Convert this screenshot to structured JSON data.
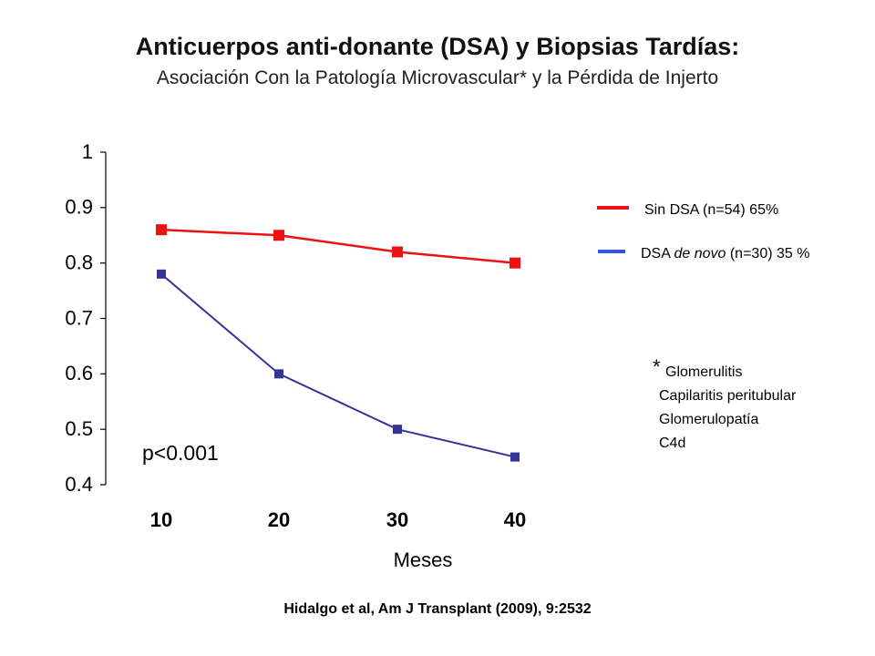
{
  "slide": {
    "title": "Anticuerpos anti-donante (DSA) y Biopsias Tardías:",
    "subtitle": "Asociación Con la Patología Microvascular* y la Pérdida de Injerto",
    "citation": "Hidalgo et al, Am J Transplant (2009), 9:2532"
  },
  "chart_data": {
    "type": "line",
    "x": [
      10,
      20,
      30,
      40
    ],
    "x_tick_labels": [
      "10",
      "20",
      "30",
      "40"
    ],
    "xlabel": "Meses",
    "ylabel": "",
    "ylim": [
      0.4,
      1.0
    ],
    "y_ticks": [
      0.4,
      0.5,
      0.6,
      0.7,
      0.8,
      0.9,
      1.0
    ],
    "y_tick_labels": [
      "0.4",
      "0.5",
      "0.6",
      "0.7",
      "0.8",
      "0.9",
      "1"
    ],
    "grid": false,
    "legend_position": "right",
    "series": [
      {
        "legend_text": "Sin DSA (n=54) 65%",
        "color": "#ee1111",
        "marker": "square",
        "values": [
          0.86,
          0.85,
          0.82,
          0.8
        ]
      },
      {
        "legend_prefix": "DSA ",
        "legend_italic": "de novo",
        "legend_suffix": " (n=30) 35 %",
        "color": "#333399",
        "marker": "square",
        "values": [
          0.78,
          0.6,
          0.5,
          0.45
        ]
      }
    ],
    "annotations": {
      "p_value": "p<0.001",
      "footnote_mark": "*",
      "footnote_items": [
        "Glomerulitis",
        "Capilaritis peritubular",
        "Glomerulopatía",
        "C4d"
      ]
    }
  }
}
